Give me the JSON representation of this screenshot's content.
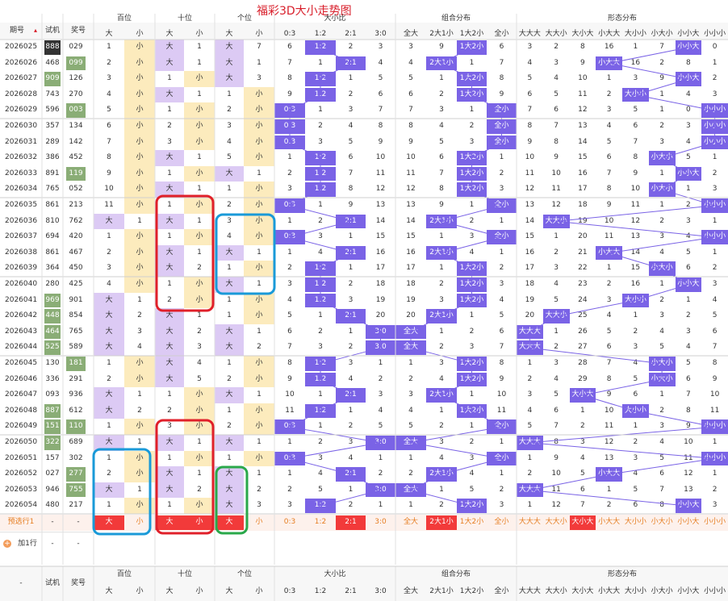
{
  "title": "福彩3D大小走势图",
  "header": {
    "period": "期号",
    "sort_icon": "sort-arrows-icon",
    "trial": "试机",
    "award": "奖号",
    "groups": [
      "百位",
      "十位",
      "个位",
      "大小比",
      "组合分布",
      "形态分布"
    ],
    "big": "大",
    "small": "小",
    "ratios": [
      "0:3",
      "1:2",
      "2:1",
      "3:0"
    ],
    "combos": [
      "全大",
      "2大1小",
      "1大2小",
      "全小"
    ],
    "forms": [
      "大大大",
      "大大小",
      "大小大",
      "小大大",
      "大小小",
      "小大小",
      "小小大",
      "小小小"
    ]
  },
  "rows": [
    {
      "id": "2026025",
      "t": "888",
      "a": "029",
      "b": "小",
      "s": "大",
      "g": "大",
      "r": "1:2",
      "c": "1大2小",
      "f": "小小大",
      "bm": [
        1,
        1
      ],
      "sm": [
        2,
        1
      ],
      "gm": [
        1,
        7
      ],
      "rm": [
        6,
        0,
        2,
        3
      ],
      "cm": [
        3,
        9,
        0,
        6
      ],
      "fm": [
        3,
        2,
        8,
        16,
        1,
        7,
        0,
        0
      ]
    },
    {
      "id": "2026026",
      "t": "468",
      "a": "099",
      "b": "小",
      "s": "大",
      "g": "大",
      "r": "2:1",
      "c": "2大1小",
      "f": "小大大",
      "bm": [
        2,
        0
      ],
      "sm": [
        0,
        1
      ],
      "gm": [
        0,
        1
      ],
      "rm": [
        7,
        1,
        0,
        4
      ],
      "cm": [
        4,
        0,
        1,
        7
      ],
      "fm": [
        4,
        3,
        9,
        0,
        16,
        2,
        8,
        1
      ]
    },
    {
      "id": "2026027",
      "t": "909",
      "a": "126",
      "b": "小",
      "s": "小",
      "g": "大",
      "r": "1:2",
      "c": "1大2小",
      "f": "小小大",
      "bm": [
        3,
        0
      ],
      "sm": [
        1,
        0
      ],
      "gm": [
        0,
        3
      ],
      "rm": [
        8,
        0,
        1,
        5
      ],
      "cm": [
        5,
        1,
        0,
        8
      ],
      "fm": [
        5,
        4,
        10,
        1,
        3,
        9,
        0,
        2
      ]
    },
    {
      "id": "2026028",
      "t": "743",
      "a": "270",
      "b": "小",
      "s": "大",
      "g": "小",
      "r": "1:2",
      "c": "1大2小",
      "f": "大小小",
      "bm": [
        4,
        0
      ],
      "sm": [
        0,
        1
      ],
      "gm": [
        1,
        0
      ],
      "rm": [
        9,
        0,
        2,
        6
      ],
      "cm": [
        6,
        2,
        0,
        9
      ],
      "fm": [
        6,
        5,
        11,
        2,
        0,
        1,
        4,
        3
      ]
    },
    {
      "id": "2026029",
      "t": "596",
      "a": "003",
      "b": "小",
      "s": "小",
      "g": "小",
      "r": "0:3",
      "c": "全小",
      "f": "小小小",
      "bm": [
        5,
        0
      ],
      "sm": [
        1,
        0
      ],
      "gm": [
        2,
        0
      ],
      "rm": [
        0,
        1,
        3,
        7
      ],
      "cm": [
        7,
        3,
        1,
        0
      ],
      "fm": [
        7,
        6,
        12,
        3,
        5,
        1,
        0,
        2
      ]
    },
    {
      "id": "2026030",
      "t": "357",
      "a": "134",
      "b": "小",
      "s": "小",
      "g": "小",
      "r": "0:3",
      "c": "全小",
      "f": "小小小",
      "bm": [
        6,
        0
      ],
      "sm": [
        2,
        0
      ],
      "gm": [
        3,
        0
      ],
      "rm": [
        0,
        2,
        4,
        8
      ],
      "cm": [
        8,
        4,
        2,
        0
      ],
      "fm": [
        8,
        7,
        13,
        4,
        6,
        2,
        3,
        0
      ]
    },
    {
      "id": "2026031",
      "t": "289",
      "a": "142",
      "b": "小",
      "s": "小",
      "g": "小",
      "r": "0:3",
      "c": "全小",
      "f": "小小小",
      "bm": [
        7,
        0
      ],
      "sm": [
        3,
        0
      ],
      "gm": [
        4,
        0
      ],
      "rm": [
        0,
        3,
        5,
        9
      ],
      "cm": [
        9,
        5,
        3,
        0
      ],
      "fm": [
        9,
        8,
        14,
        5,
        7,
        3,
        4,
        0
      ]
    },
    {
      "id": "2026032",
      "t": "386",
      "a": "452",
      "b": "小",
      "s": "大",
      "g": "小",
      "r": "1:2",
      "c": "1大2小",
      "f": "小大小",
      "bm": [
        8,
        0
      ],
      "sm": [
        0,
        1
      ],
      "gm": [
        5,
        0
      ],
      "rm": [
        1,
        0,
        6,
        10
      ],
      "cm": [
        10,
        6,
        0,
        1
      ],
      "fm": [
        10,
        9,
        15,
        6,
        8,
        0,
        5,
        1
      ]
    },
    {
      "id": "2026033",
      "t": "891",
      "a": "119",
      "b": "小",
      "s": "小",
      "g": "大",
      "r": "1:2",
      "c": "1大2小",
      "f": "小小大",
      "bm": [
        9,
        0
      ],
      "sm": [
        1,
        0
      ],
      "gm": [
        0,
        1
      ],
      "rm": [
        2,
        0,
        7,
        11
      ],
      "cm": [
        11,
        7,
        0,
        2
      ],
      "fm": [
        11,
        10,
        16,
        7,
        9,
        1,
        0,
        2
      ]
    },
    {
      "id": "2026034",
      "t": "765",
      "a": "052",
      "b": "小",
      "s": "大",
      "g": "小",
      "r": "1:2",
      "c": "1大2小",
      "f": "小大小",
      "bm": [
        10,
        0
      ],
      "sm": [
        0,
        1
      ],
      "gm": [
        1,
        0
      ],
      "rm": [
        3,
        0,
        8,
        12
      ],
      "cm": [
        12,
        8,
        0,
        3
      ],
      "fm": [
        12,
        11,
        17,
        8,
        10,
        0,
        1,
        3
      ]
    },
    {
      "id": "2026035",
      "t": "861",
      "a": "213",
      "b": "小",
      "s": "小",
      "g": "小",
      "r": "0:3",
      "c": "全小",
      "f": "小小小",
      "bm": [
        11,
        0
      ],
      "sm": [
        1,
        0
      ],
      "gm": [
        2,
        0
      ],
      "rm": [
        0,
        1,
        9,
        13
      ],
      "cm": [
        13,
        9,
        1,
        0
      ],
      "fm": [
        13,
        12,
        18,
        9,
        11,
        1,
        2,
        0
      ]
    },
    {
      "id": "2026036",
      "t": "810",
      "a": "762",
      "b": "大",
      "s": "大",
      "g": "小",
      "r": "2:1",
      "c": "2大1小",
      "f": "大大小",
      "bm": [
        0,
        1
      ],
      "sm": [
        0,
        1
      ],
      "gm": [
        3,
        0
      ],
      "rm": [
        1,
        2,
        0,
        14
      ],
      "cm": [
        14,
        0,
        2,
        1
      ],
      "fm": [
        14,
        0,
        19,
        10,
        12,
        2,
        3,
        1
      ]
    },
    {
      "id": "2026037",
      "t": "694",
      "a": "420",
      "b": "小",
      "s": "小",
      "g": "小",
      "r": "0:3",
      "c": "全小",
      "f": "小小小",
      "bm": [
        1,
        0
      ],
      "sm": [
        1,
        0
      ],
      "gm": [
        4,
        0
      ],
      "rm": [
        0,
        3,
        1,
        15
      ],
      "cm": [
        15,
        1,
        3,
        0
      ],
      "fm": [
        15,
        1,
        20,
        11,
        13,
        3,
        4,
        0
      ]
    },
    {
      "id": "2026038",
      "t": "861",
      "a": "467",
      "b": "小",
      "s": "大",
      "g": "大",
      "r": "2:1",
      "c": "2大1小",
      "f": "小大大",
      "bm": [
        2,
        0
      ],
      "sm": [
        0,
        1
      ],
      "gm": [
        0,
        1
      ],
      "rm": [
        1,
        4,
        0,
        16
      ],
      "cm": [
        16,
        0,
        4,
        1
      ],
      "fm": [
        16,
        2,
        21,
        0,
        14,
        4,
        5,
        1
      ]
    },
    {
      "id": "2026039",
      "t": "364",
      "a": "450",
      "b": "小",
      "s": "大",
      "g": "小",
      "r": "1:2",
      "c": "1大2小",
      "f": "小大小",
      "bm": [
        3,
        0
      ],
      "sm": [
        0,
        2
      ],
      "gm": [
        1,
        0
      ],
      "rm": [
        2,
        0,
        1,
        17
      ],
      "cm": [
        17,
        1,
        0,
        2
      ],
      "fm": [
        17,
        3,
        22,
        1,
        15,
        0,
        6,
        2
      ]
    },
    {
      "id": "2026040",
      "t": "280",
      "a": "425",
      "b": "小",
      "s": "小",
      "g": "大",
      "r": "1:2",
      "c": "1大2小",
      "f": "小小大",
      "bm": [
        4,
        0
      ],
      "sm": [
        1,
        0
      ],
      "gm": [
        0,
        1
      ],
      "rm": [
        3,
        0,
        2,
        18
      ],
      "cm": [
        18,
        2,
        0,
        3
      ],
      "fm": [
        18,
        4,
        23,
        2,
        16,
        1,
        0,
        3
      ]
    },
    {
      "id": "2026041",
      "t": "969",
      "a": "901",
      "b": "大",
      "s": "小",
      "g": "小",
      "r": "1:2",
      "c": "1大2小",
      "f": "大小小",
      "bm": [
        0,
        1
      ],
      "sm": [
        2,
        0
      ],
      "gm": [
        1,
        0
      ],
      "rm": [
        4,
        0,
        3,
        19
      ],
      "cm": [
        19,
        3,
        0,
        4
      ],
      "fm": [
        19,
        5,
        24,
        3,
        0,
        2,
        1,
        4
      ]
    },
    {
      "id": "2026042",
      "t": "448",
      "a": "854",
      "b": "大",
      "s": "大",
      "g": "小",
      "r": "2:1",
      "c": "2大1小",
      "f": "大大小",
      "bm": [
        0,
        2
      ],
      "sm": [
        0,
        1
      ],
      "gm": [
        1,
        0
      ],
      "rm": [
        5,
        1,
        0,
        20
      ],
      "cm": [
        20,
        0,
        1,
        5
      ],
      "fm": [
        20,
        0,
        25,
        4,
        1,
        3,
        2,
        5
      ]
    },
    {
      "id": "2026043",
      "t": "464",
      "a": "765",
      "b": "大",
      "s": "大",
      "g": "大",
      "r": "3:0",
      "c": "全大",
      "f": "大大大",
      "bm": [
        0,
        3
      ],
      "sm": [
        0,
        2
      ],
      "gm": [
        0,
        1
      ],
      "rm": [
        6,
        2,
        1,
        0
      ],
      "cm": [
        0,
        1,
        2,
        6
      ],
      "fm": [
        0,
        1,
        26,
        5,
        2,
        4,
        3,
        6
      ]
    },
    {
      "id": "2026044",
      "t": "525",
      "a": "589",
      "b": "大",
      "s": "大",
      "g": "大",
      "r": "3:0",
      "c": "全大",
      "f": "大大大",
      "bm": [
        0,
        4
      ],
      "sm": [
        0,
        3
      ],
      "gm": [
        0,
        2
      ],
      "rm": [
        7,
        3,
        2,
        0
      ],
      "cm": [
        0,
        2,
        3,
        7
      ],
      "fm": [
        0,
        2,
        27,
        6,
        3,
        5,
        4,
        7
      ]
    },
    {
      "id": "2026045",
      "t": "130",
      "a": "181",
      "b": "小",
      "s": "大",
      "g": "小",
      "r": "1:2",
      "c": "1大2小",
      "f": "小大小",
      "bm": [
        1,
        0
      ],
      "sm": [
        0,
        4
      ],
      "gm": [
        1,
        0
      ],
      "rm": [
        8,
        0,
        3,
        1
      ],
      "cm": [
        1,
        3,
        0,
        8
      ],
      "fm": [
        1,
        3,
        28,
        7,
        4,
        0,
        5,
        8
      ]
    },
    {
      "id": "2026046",
      "t": "336",
      "a": "291",
      "b": "小",
      "s": "大",
      "g": "小",
      "r": "1:2",
      "c": "1大2小",
      "f": "小大小",
      "bm": [
        2,
        0
      ],
      "sm": [
        0,
        5
      ],
      "gm": [
        2,
        0
      ],
      "rm": [
        9,
        0,
        4,
        2
      ],
      "cm": [
        2,
        4,
        0,
        9
      ],
      "fm": [
        2,
        4,
        29,
        8,
        5,
        0,
        6,
        9
      ]
    },
    {
      "id": "2026047",
      "t": "093",
      "a": "936",
      "b": "大",
      "s": "小",
      "g": "大",
      "r": "2:1",
      "c": "2大1小",
      "f": "大小大",
      "bm": [
        0,
        1
      ],
      "sm": [
        1,
        0
      ],
      "gm": [
        0,
        1
      ],
      "rm": [
        10,
        1,
        0,
        3
      ],
      "cm": [
        3,
        0,
        1,
        10
      ],
      "fm": [
        3,
        5,
        0,
        9,
        6,
        1,
        7,
        10
      ]
    },
    {
      "id": "2026048",
      "t": "887",
      "a": "612",
      "b": "大",
      "s": "小",
      "g": "小",
      "r": "1:2",
      "c": "1大2小",
      "f": "大小小",
      "bm": [
        0,
        2
      ],
      "sm": [
        2,
        0
      ],
      "gm": [
        1,
        0
      ],
      "rm": [
        11,
        0,
        1,
        4
      ],
      "cm": [
        4,
        1,
        0,
        11
      ],
      "fm": [
        4,
        6,
        1,
        10,
        0,
        2,
        8,
        11
      ]
    },
    {
      "id": "2026049",
      "t": "151",
      "a": "110",
      "b": "小",
      "s": "小",
      "g": "小",
      "r": "0:3",
      "c": "全小",
      "f": "小小小",
      "bm": [
        1,
        0
      ],
      "sm": [
        3,
        0
      ],
      "gm": [
        2,
        0
      ],
      "rm": [
        0,
        1,
        2,
        5
      ],
      "cm": [
        5,
        2,
        1,
        0
      ],
      "fm": [
        5,
        7,
        2,
        11,
        1,
        3,
        9,
        0
      ]
    },
    {
      "id": "2026050",
      "t": "322",
      "a": "689",
      "b": "大",
      "s": "大",
      "g": "大",
      "r": "3:0",
      "c": "全大",
      "f": "大大大",
      "bm": [
        0,
        1
      ],
      "sm": [
        0,
        1
      ],
      "gm": [
        0,
        1
      ],
      "rm": [
        1,
        2,
        3,
        0
      ],
      "cm": [
        0,
        3,
        2,
        1
      ],
      "fm": [
        0,
        8,
        3,
        12,
        2,
        4,
        10,
        1
      ]
    },
    {
      "id": "2026051",
      "t": "157",
      "a": "302",
      "b": "小",
      "s": "小",
      "g": "小",
      "r": "0:3",
      "c": "全小",
      "f": "小小小",
      "bm": [
        1,
        0
      ],
      "sm": [
        1,
        0
      ],
      "gm": [
        1,
        0
      ],
      "rm": [
        0,
        3,
        4,
        1
      ],
      "cm": [
        1,
        4,
        3,
        0
      ],
      "fm": [
        1,
        9,
        4,
        13,
        3,
        5,
        11,
        0
      ]
    },
    {
      "id": "2026052",
      "t": "027",
      "a": "277",
      "b": "小",
      "s": "大",
      "g": "大",
      "r": "2:1",
      "c": "2大1小",
      "f": "小大大",
      "bm": [
        2,
        0
      ],
      "sm": [
        0,
        1
      ],
      "gm": [
        0,
        1
      ],
      "rm": [
        1,
        4,
        0,
        2
      ],
      "cm": [
        2,
        0,
        4,
        1
      ],
      "fm": [
        2,
        10,
        5,
        0,
        4,
        6,
        12,
        1
      ]
    },
    {
      "id": "2026053",
      "t": "946",
      "a": "755",
      "b": "大",
      "s": "大",
      "g": "大",
      "r": "3:0",
      "c": "全大",
      "f": "大大大",
      "bm": [
        0,
        1
      ],
      "sm": [
        0,
        2
      ],
      "gm": [
        0,
        2
      ],
      "rm": [
        2,
        5,
        1,
        0
      ],
      "cm": [
        0,
        1,
        5,
        2
      ],
      "fm": [
        0,
        11,
        6,
        1,
        5,
        7,
        13,
        2
      ]
    },
    {
      "id": "2026054",
      "t": "480",
      "a": "217",
      "b": "小",
      "s": "小",
      "g": "大",
      "r": "1:2",
      "c": "1大2小",
      "f": "小小大",
      "bm": [
        1,
        0
      ],
      "sm": [
        1,
        0
      ],
      "gm": [
        0,
        3
      ],
      "rm": [
        3,
        0,
        2,
        1
      ],
      "cm": [
        1,
        2,
        0,
        3
      ],
      "fm": [
        1,
        12,
        7,
        2,
        6,
        8,
        0,
        3
      ]
    }
  ],
  "predict": {
    "label": "预选行1",
    "dash": "-",
    "bai": [
      "大",
      "小"
    ],
    "shi": [
      "大",
      "小"
    ],
    "ge": [
      "大",
      "小"
    ],
    "ratios": [
      "0:3",
      "1:2",
      "2:1",
      "3:0"
    ],
    "combos": [
      "全大",
      "2大1小",
      "1大2小",
      "全小"
    ],
    "forms": [
      "大大大",
      "大大小",
      "大小大",
      "小大大",
      "大小小",
      "小大小",
      "小小大",
      "小小小"
    ],
    "selected": {
      "bai": "大",
      "shi": "小",
      "ge": "大",
      "ratio": "2:1",
      "combo": "2大1小",
      "form": "大小大"
    },
    "shi_big_selected": true
  },
  "add_row": {
    "label": "加1行",
    "icon": "plus-circle-icon",
    "dash": "-"
  },
  "footer": {
    "dash": "-",
    "trial": "试机",
    "award": "奖号"
  },
  "colors": {
    "accent": "#7a63e6",
    "red": "#f23a3a",
    "green": "#8aad76",
    "small_bg": "#fcebbd",
    "big_bg": "#dccaf4",
    "highlight_red": "#e0202a",
    "highlight_blue": "#1a9ad8",
    "highlight_green": "#2aa84a"
  },
  "annotations": [
    "red-box",
    "blue-box",
    "green-box"
  ]
}
